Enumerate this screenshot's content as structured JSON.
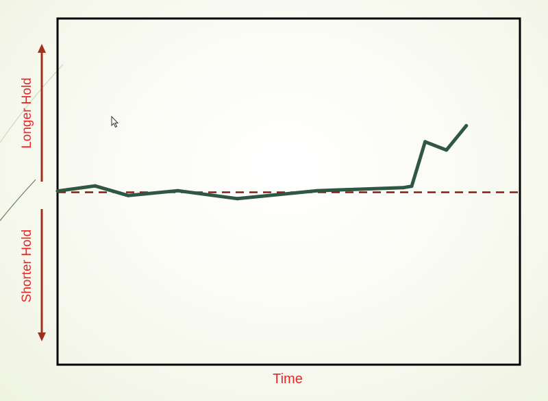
{
  "chart_data": {
    "type": "line",
    "xlabel": "Time",
    "ylabel_top": "Longer Hold",
    "ylabel_bottom": "Shorter Hold",
    "ylim": [
      -100,
      100
    ],
    "baseline": 0,
    "series": [
      {
        "color": "#2f5744",
        "x": [
          0,
          1,
          2,
          3,
          4,
          5,
          6,
          7,
          8,
          9,
          10
        ],
        "y": [
          0.7,
          3.7,
          -1.9,
          0.9,
          -3.7,
          0.9,
          2.7,
          3.5,
          29.3,
          24.5,
          38.6
        ]
      }
    ],
    "x_positions": [
      0,
      0.081,
      0.153,
      0.26,
      0.389,
      0.561,
      0.748,
      0.766,
      0.795,
      0.841,
      0.884
    ],
    "baseline_style": "dashed",
    "baseline_color": "#8b1a10",
    "arrow_color": "#a0301c",
    "label_color": "#e8262a"
  },
  "cursor_icon": "mouse-pointer-icon"
}
